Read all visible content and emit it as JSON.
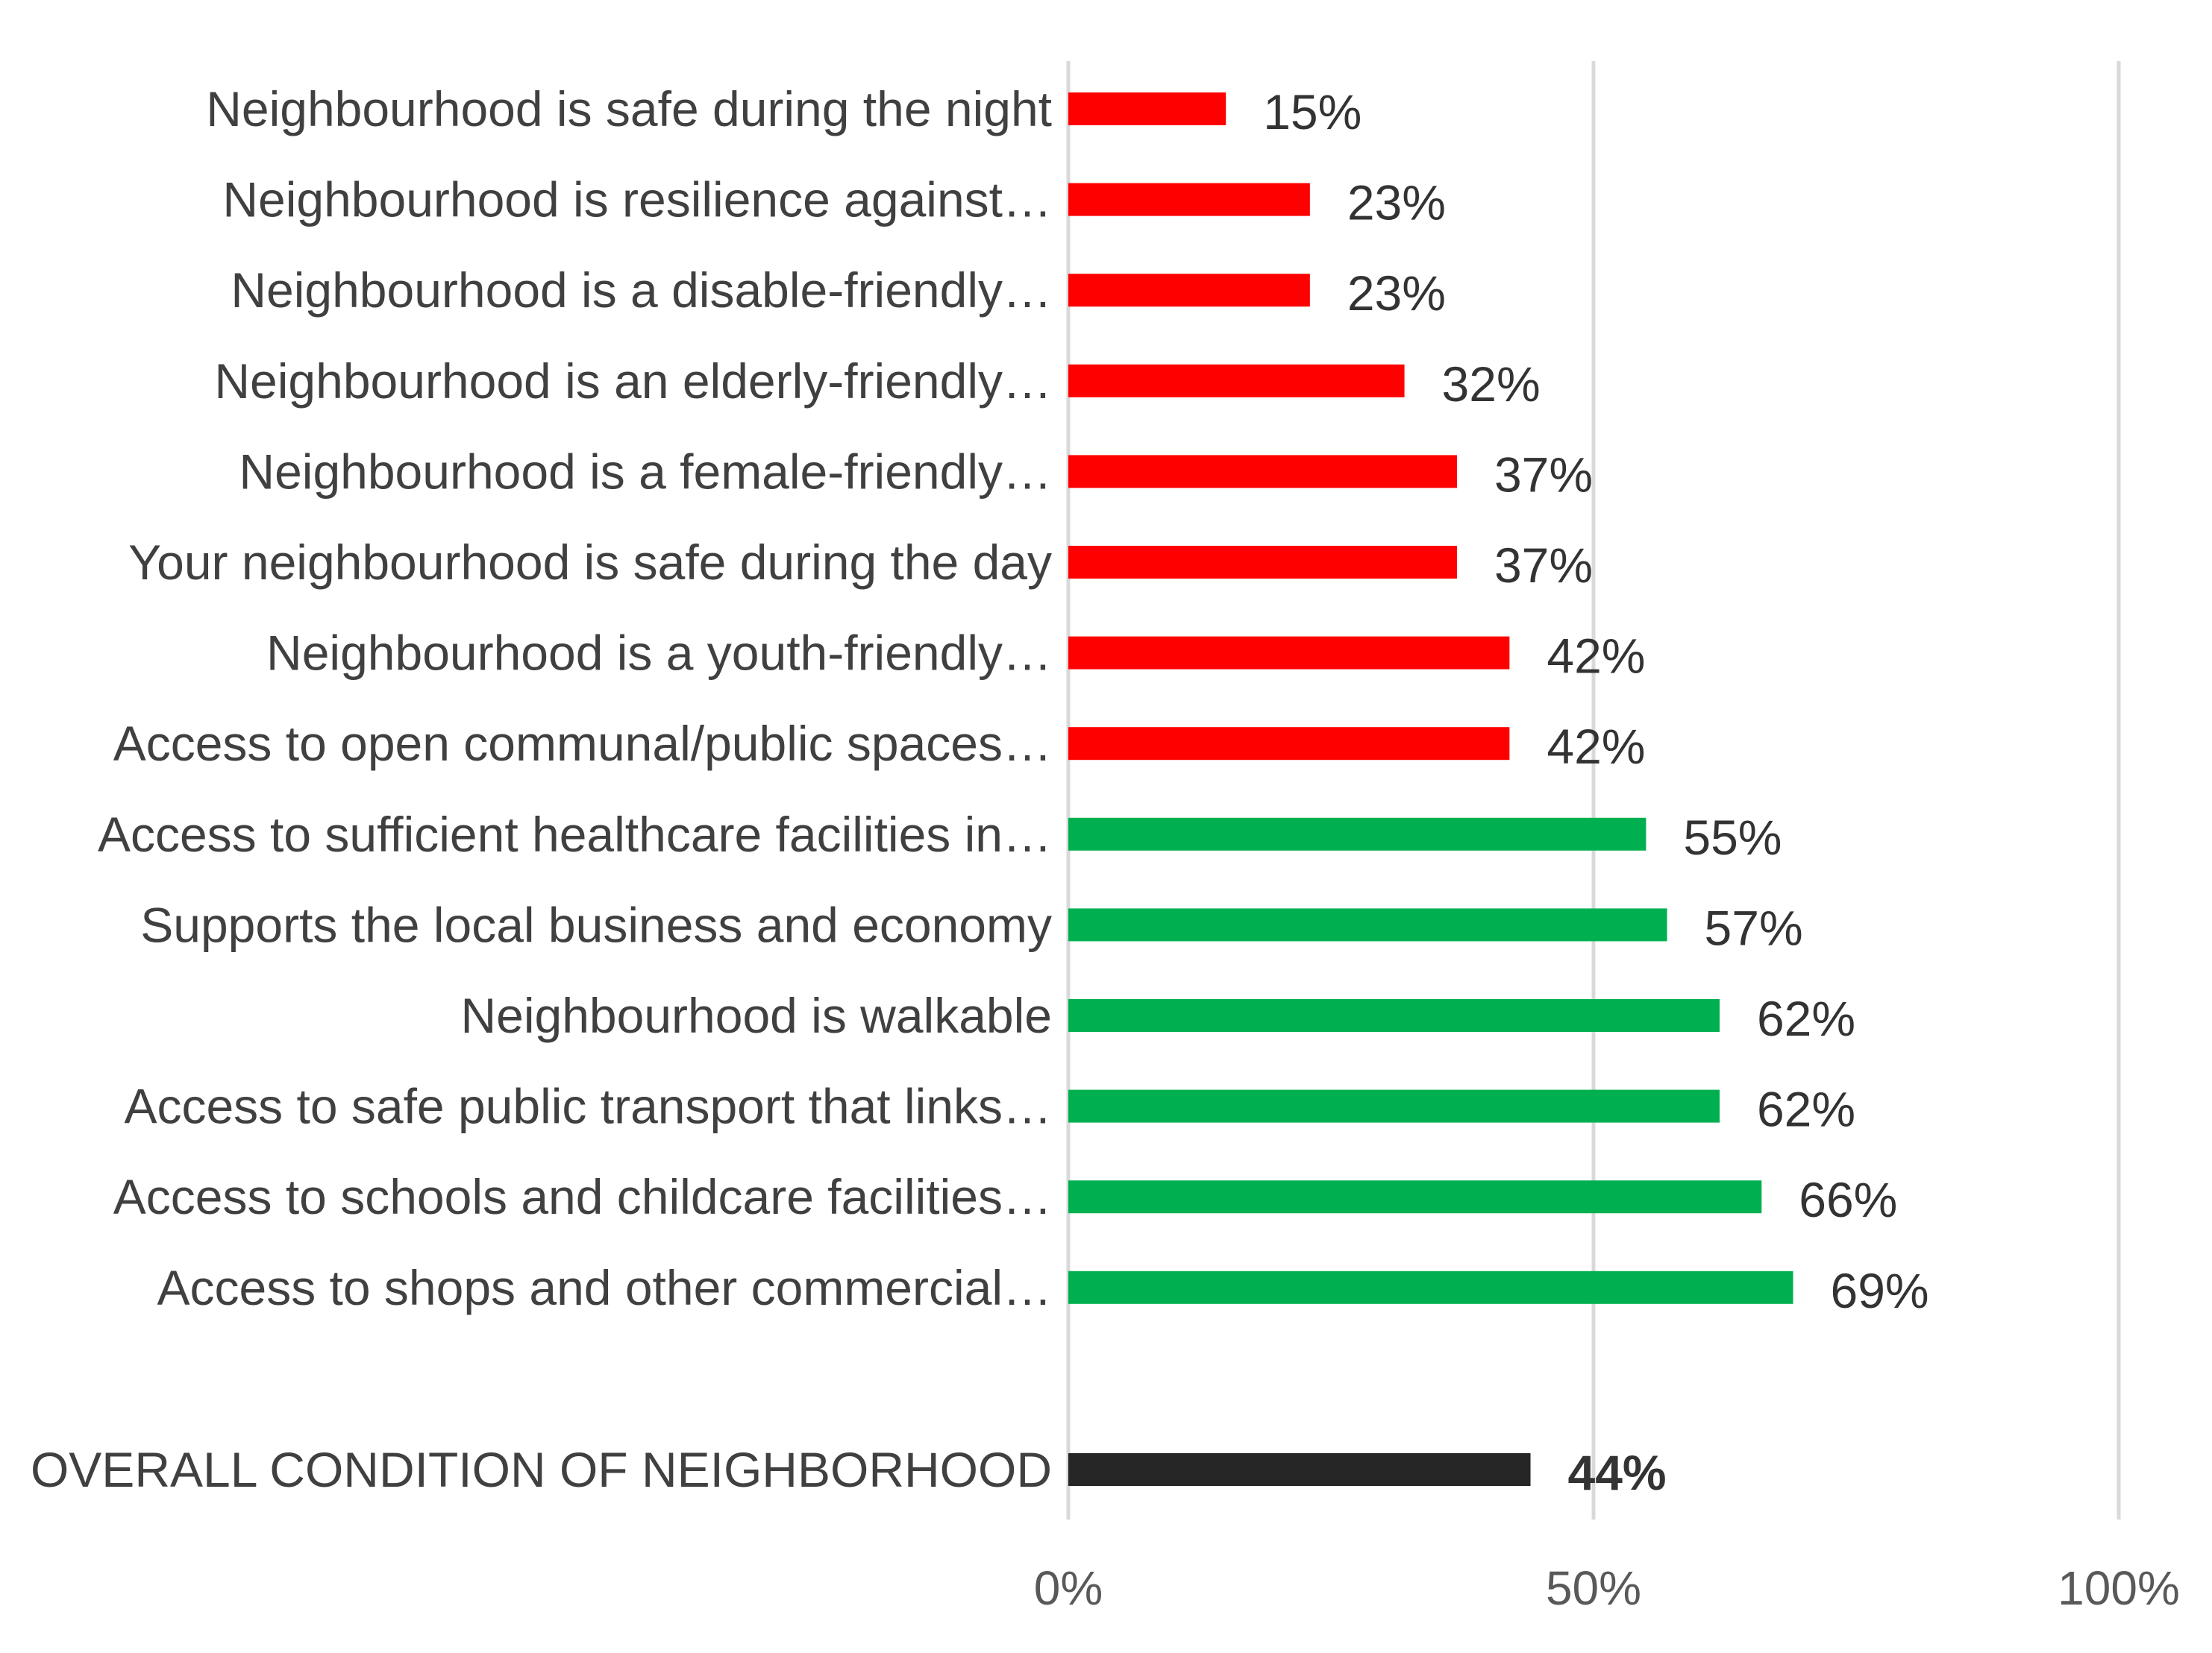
{
  "chart_data": {
    "type": "bar",
    "orientation": "horizontal",
    "categories": [
      "Neighbourhood is safe during the night",
      "Neighbourhood is resilience against…",
      "Neighbourhood is a disable-friendly…",
      "Neighbourhood is an elderly-friendly…",
      "Neighbourhood is a female-friendly…",
      "Your neighbourhood is safe during the day",
      "Neighbourhood is a youth-friendly…",
      "Access to open communal/public spaces…",
      "Access to sufficient healthcare facilities in…",
      "Supports the local business and economy",
      "Neighbourhood is walkable",
      "Access to safe public transport that links…",
      "Access to schools and childcare facilities…",
      "Access to shops and other commercial…",
      "OVERALL CONDITION OF NEIGHBORHOOD"
    ],
    "values": [
      15,
      23,
      23,
      32,
      37,
      37,
      42,
      42,
      55,
      57,
      62,
      62,
      66,
      69,
      44
    ],
    "value_labels": [
      "15%",
      "23%",
      "23%",
      "32%",
      "37%",
      "37%",
      "42%",
      "42%",
      "55%",
      "57%",
      "62%",
      "62%",
      "66%",
      "69%",
      "44%"
    ],
    "bar_colors": [
      "#ff0000",
      "#ff0000",
      "#ff0000",
      "#ff0000",
      "#ff0000",
      "#ff0000",
      "#ff0000",
      "#ff0000",
      "#00b050",
      "#00b050",
      "#00b050",
      "#00b050",
      "#00b050",
      "#00b050",
      "#262626"
    ],
    "bold_labels": [
      false,
      false,
      false,
      false,
      false,
      false,
      false,
      false,
      false,
      false,
      false,
      false,
      false,
      false,
      true
    ],
    "xlim": [
      0,
      100
    ],
    "x_ticks": [
      0,
      50,
      100
    ],
    "x_tick_labels": [
      "0%",
      "50%",
      "100%"
    ],
    "grid": true,
    "title": "",
    "xlabel": "",
    "ylabel": ""
  }
}
